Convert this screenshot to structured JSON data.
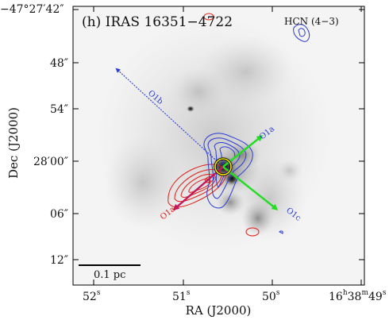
{
  "panel": {
    "title": "(h) IRAS 16351−4722",
    "line": "HCN (4−3)"
  },
  "axes": {
    "xlabel": "RA (J2000)",
    "ylabel": "Dec (J2000)",
    "x_ticks": [
      "52",
      "51",
      "50",
      "16h38m49"
    ],
    "x_tick_suffix": "s",
    "y_ticks": [
      "−47°27′42″",
      "48″",
      "54″",
      "28′00″",
      "06″",
      "12″"
    ]
  },
  "outflows": {
    "blue_label": "O1b",
    "red_label": "O1a",
    "blue_label_2": "O1a",
    "green_label": "O1c"
  },
  "scalebar": {
    "label": "0.1 pc"
  },
  "colors": {
    "redshifted": "#e0201b",
    "blueshifted": "#2b3bd6",
    "outflow_magenta": "#c2185b",
    "outflow_green": "#22dd22",
    "source_marker": "#f2e600"
  }
}
